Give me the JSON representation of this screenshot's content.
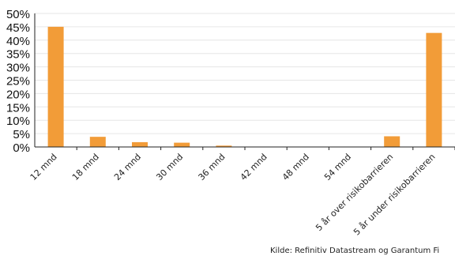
{
  "chart_data": {
    "type": "bar",
    "categories": [
      "12 mnd",
      "18 mnd",
      "24 mnd",
      "30 mnd",
      "36 mnd",
      "42 mnd",
      "48 mnd",
      "54 mnd",
      "5 år over risikobarrieren",
      "5 år under risikobarrieren"
    ],
    "values": [
      45.0,
      3.8,
      1.8,
      1.6,
      0.5,
      0,
      0,
      0,
      4.0,
      42.7
    ],
    "y_ticks": [
      "50%",
      "45%",
      "40%",
      "35%",
      "30%",
      "25%",
      "20%",
      "15%",
      "10%",
      "5%",
      "0%"
    ],
    "ylim": [
      0,
      50
    ],
    "bar_color": "#F29C38",
    "grid": true
  },
  "source": "Kilde: Refinitiv Datastream og Garantum Fi"
}
